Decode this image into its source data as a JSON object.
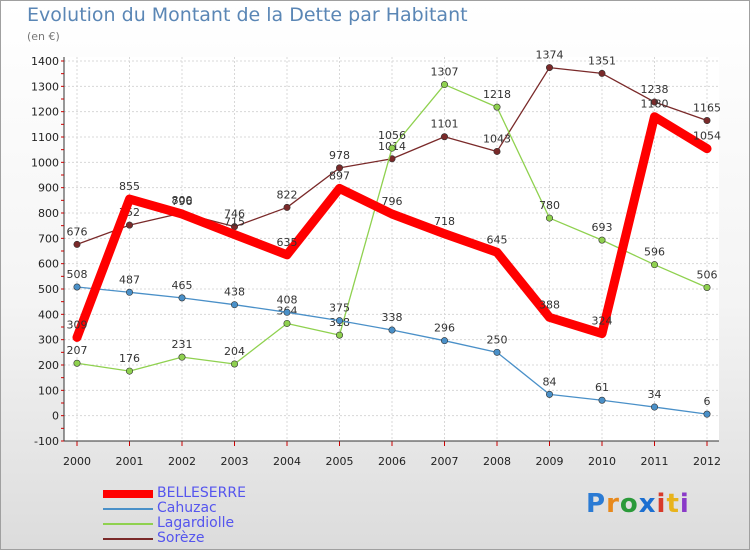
{
  "chart_data": {
    "type": "line",
    "title": "Evolution du Montant de la Dette par Habitant",
    "ylabel": "(en €)",
    "xlabel": "",
    "ylim": [
      -100,
      1400
    ],
    "yticks": [
      "-100",
      "0",
      "100",
      "200",
      "300",
      "400",
      "500",
      "600",
      "700",
      "800",
      "900",
      "1000",
      "1100",
      "1200",
      "1300",
      "1400"
    ],
    "categories": [
      "2000",
      "2001",
      "2002",
      "2003",
      "2004",
      "2005",
      "2006",
      "2007",
      "2008",
      "2009",
      "2010",
      "2011",
      "2012"
    ],
    "series": [
      {
        "name": "BELLESERRE",
        "color": "#ff0000",
        "values": [
          309,
          855,
          796,
          715,
          635,
          897,
          796,
          718,
          645,
          388,
          324,
          1180,
          1054
        ]
      },
      {
        "name": "Cahuzac",
        "color": "#4a90c8",
        "values": [
          508,
          487,
          465,
          438,
          408,
          375,
          338,
          296,
          250,
          84,
          61,
          34,
          6
        ]
      },
      {
        "name": "Lagardiolle",
        "color": "#8fd14f",
        "values": [
          207,
          176,
          231,
          204,
          364,
          318,
          1056,
          1307,
          1218,
          780,
          693,
          596,
          506
        ]
      },
      {
        "name": "Sorèze",
        "color": "#7a2a2a",
        "values": [
          676,
          752,
          800,
          746,
          822,
          978,
          1014,
          1101,
          1043,
          1374,
          1351,
          1238,
          1165
        ]
      }
    ],
    "legend_position": "bottom-left"
  },
  "brand": {
    "letters": [
      "P",
      "r",
      "o",
      "x",
      "i",
      "t",
      "i"
    ],
    "colors": [
      "#2b7bd4",
      "#e8891c",
      "#2b9a3a",
      "#1c6fd1",
      "#d83a2a",
      "#e8b31c",
      "#8a3ac8"
    ]
  }
}
